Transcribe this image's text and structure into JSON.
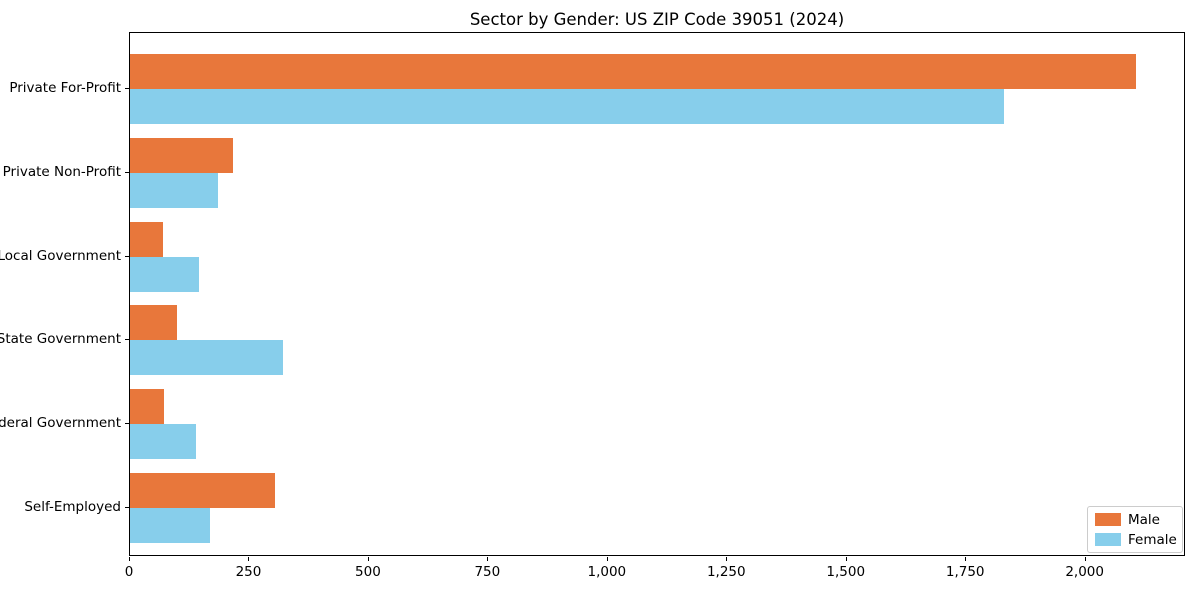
{
  "chart_data": {
    "type": "bar",
    "orientation": "horizontal",
    "title": "Sector by Gender: US ZIP Code 39051 (2024)",
    "xlabel": "",
    "ylabel": "",
    "categories": [
      "Private For-Profit",
      "Private Non-Profit",
      "Local Government",
      "State Government",
      "Federal Government",
      "Self-Employed"
    ],
    "series": [
      {
        "name": "Male",
        "color": "#e8773b",
        "values": [
          2105,
          215,
          70,
          98,
          71,
          304
        ]
      },
      {
        "name": "Female",
        "color": "#87ceeb",
        "values": [
          1830,
          184,
          145,
          320,
          138,
          167
        ]
      }
    ],
    "xlim": [
      0,
      2210
    ],
    "xticks": [
      0,
      250,
      500,
      750,
      1000,
      1250,
      1500,
      1750,
      2000
    ],
    "xtick_labels": [
      "0",
      "250",
      "500",
      "750",
      "1,000",
      "1,250",
      "1,500",
      "1,750",
      "2,000"
    ],
    "grid": false,
    "legend_position": "lower right",
    "colors": {
      "male": "#e8773b",
      "female": "#87ceeb",
      "spine": "#000000",
      "legend_border": "#cccccc",
      "background": "#ffffff"
    }
  }
}
